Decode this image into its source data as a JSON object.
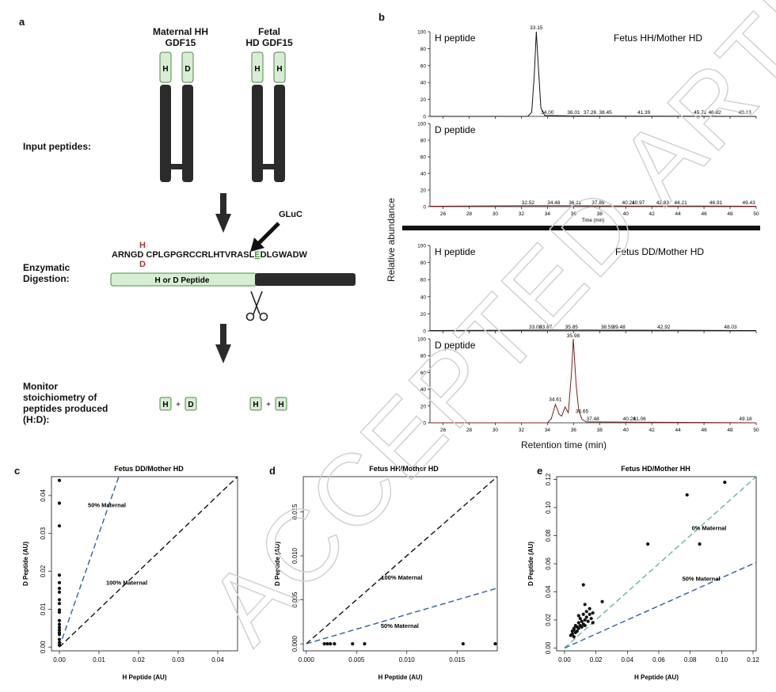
{
  "panel_a": {
    "letter": "a",
    "maternal_title_1": "Maternal HH",
    "maternal_title_2": "GDF15",
    "fetal_title_1": "Fetal",
    "fetal_title_2": "HD GDF15",
    "maternal_tags": [
      "H",
      "D"
    ],
    "fetal_tags": [
      "H",
      "H"
    ],
    "input_label": "Input peptides:",
    "gluc_label": "GLuC",
    "sequence_prefix": "ARNGD",
    "sequence_body": "CPLGPGRCCRLHTVRASL",
    "sequence_cut": "E",
    "sequence_suffix": "DLGWADW",
    "variant_top": "H",
    "variant_bottom": "D",
    "bar_label": "H or D Peptide",
    "digestion_label_1": "Enzymatic",
    "digestion_label_2": "Digestion:",
    "monitor_label_1": "Monitor",
    "monitor_label_2": "stoichiometry of",
    "monitor_label_3": "peptides produced",
    "monitor_label_4": "(H:D):",
    "pair1": [
      "H",
      "+",
      "D"
    ],
    "pair2": [
      "H",
      "+",
      "H"
    ]
  },
  "panel_b": {
    "letter": "b",
    "ylabel": "Relative abundance",
    "xlabel": "Retention time (min)",
    "small_xlabel": "Time (min)",
    "x_ticks": [
      "26",
      "28",
      "30",
      "32",
      "34",
      "36",
      "38",
      "40",
      "42",
      "44",
      "46",
      "48",
      "50"
    ],
    "y_ticks": [
      "0",
      "20",
      "40",
      "60",
      "80",
      "100"
    ],
    "top_condition": "Fetus HH/Mother HD",
    "bottom_condition": "Fetus DD/Mother HD",
    "trace_titles": [
      "H peptide",
      "D peptide",
      "H peptide",
      "D peptide"
    ],
    "peak_labels": [
      [
        "33.15",
        "34.00",
        "36.01",
        "37.26",
        "38.45",
        "41.39",
        "45.71",
        "46.82",
        "49.13"
      ],
      [
        "32.52",
        "34.48",
        "36.11",
        "37.89",
        "40.21",
        "40.97",
        "42.83",
        "44.21",
        "46.91",
        "49.43"
      ],
      [
        "33.08",
        "33.87",
        "35.85",
        "38.59",
        "39.48",
        "42.92",
        "48.03"
      ],
      [
        "35.98",
        "34.61",
        "36.65",
        "37.48",
        "40.28",
        "41.06",
        "49.18"
      ]
    ]
  },
  "panel_c": {
    "letter": "c",
    "title": "Fetus DD/Mother HD",
    "xlabel": "H Peptide (AU)",
    "ylabel": "D Peptide (AU)",
    "x_ticks": [
      "0.00",
      "0.01",
      "0.02",
      "0.03",
      "0.04"
    ],
    "y_ticks": [
      "0.00",
      "0.01",
      "0.02",
      "0.03",
      "0.04"
    ],
    "line1_label": "50% Maternal",
    "line2_label": "100% Maternal"
  },
  "panel_d": {
    "letter": "d",
    "title": "Fetus HH/Mother HD",
    "xlabel": "H Peptide (AU)",
    "ylabel": "D Peptide (AU)",
    "x_ticks": [
      "0.000",
      "0.005",
      "0.010",
      "0.015"
    ],
    "y_ticks": [
      "0.000",
      "0.005",
      "0.010",
      "0.015"
    ],
    "line1_label": "100% Maternal",
    "line2_label": "50% Maternal"
  },
  "panel_e": {
    "letter": "e",
    "title": "Fetus HD/Mother HH",
    "xlabel": "H Peptide (AU)",
    "ylabel": "D Peptide (AU)",
    "x_ticks": [
      "0.00",
      "0.02",
      "0.04",
      "0.06",
      "0.08",
      "0.10",
      "0.12"
    ],
    "y_ticks": [
      "0.00",
      "0.02",
      "0.04",
      "0.06",
      "0.08",
      "0.10",
      "0.12"
    ],
    "line1_label": "0% Maternal",
    "line2_label": "50% Maternal"
  },
  "watermark": "ACCEPTED ARTICLE PREVIEW",
  "colors": {
    "light_green": "#d8eed4",
    "green_border": "#4f8a4a",
    "dark_gray": "#2b2b2b",
    "red": "#b0343c",
    "blue_dash": "#2f5f9e",
    "teal_dash": "#5fb7a0",
    "trace_red": "#7a1f1f"
  },
  "chart_data": [
    {
      "type": "line",
      "panel": "b",
      "title": "H peptide",
      "condition": "Fetus HH/Mother HD",
      "xlabel": "Time (min)",
      "ylabel": "Relative abundance",
      "xlim": [
        25,
        50
      ],
      "ylim": [
        0,
        100
      ],
      "x": [
        25,
        32.5,
        32.8,
        33.0,
        33.15,
        33.3,
        33.5,
        33.8,
        34.0,
        36.0,
        50
      ],
      "y": [
        0,
        0,
        5,
        50,
        100,
        60,
        10,
        1,
        1,
        0.5,
        0
      ]
    },
    {
      "type": "line",
      "panel": "b",
      "title": "D peptide",
      "condition": "Fetus HH/Mother HD",
      "xlabel": "Time (min)",
      "ylabel": "Relative abundance",
      "xlim": [
        25,
        50
      ],
      "ylim": [
        0,
        100
      ],
      "x": [
        25,
        32.52,
        36.11,
        40.21,
        46.91,
        50
      ],
      "y": [
        0.5,
        1,
        1,
        0.8,
        0.8,
        0.5
      ]
    },
    {
      "type": "line",
      "panel": "b",
      "title": "H peptide",
      "condition": "Fetus DD/Mother HD",
      "xlabel": "Retention time (min)",
      "ylabel": "Relative abundance",
      "xlim": [
        25,
        50
      ],
      "ylim": [
        0,
        100
      ],
      "x": [
        25,
        33.08,
        35.85,
        42.92,
        50
      ],
      "y": [
        0.5,
        1,
        1,
        0.8,
        0.5
      ]
    },
    {
      "type": "line",
      "panel": "b",
      "title": "D peptide",
      "condition": "Fetus DD/Mother HD",
      "xlabel": "Retention time (min)",
      "ylabel": "Relative abundance",
      "xlim": [
        25,
        50
      ],
      "ylim": [
        0,
        100
      ],
      "x": [
        25,
        34.0,
        34.3,
        34.61,
        34.9,
        35.1,
        35.35,
        35.6,
        35.85,
        35.98,
        36.2,
        36.4,
        36.65,
        37.0,
        37.48,
        50
      ],
      "y": [
        0,
        0,
        5,
        22,
        10,
        8,
        19,
        12,
        60,
        100,
        45,
        15,
        4,
        1,
        1,
        0
      ]
    },
    {
      "type": "scatter",
      "panel": "c",
      "title": "Fetus DD/Mother HD",
      "xlabel": "H Peptide (AU)",
      "ylabel": "D Peptide (AU)",
      "xlim": [
        -0.002,
        0.045
      ],
      "ylim": [
        -0.001,
        0.045
      ],
      "points": [
        [
          0.0,
          0.044
        ],
        [
          0.0,
          0.038
        ],
        [
          0.0,
          0.032
        ],
        [
          0.0,
          0.019
        ],
        [
          0.0,
          0.017
        ],
        [
          0.0,
          0.0155
        ],
        [
          0.0,
          0.0145
        ],
        [
          0.0,
          0.0125
        ],
        [
          0.0,
          0.0115
        ],
        [
          0.0,
          0.0098
        ],
        [
          0.0,
          0.0092
        ],
        [
          0.0,
          0.007
        ],
        [
          0.0,
          0.006
        ],
        [
          0.0,
          0.0052
        ],
        [
          0.0,
          0.0045
        ],
        [
          0.0,
          0.0038
        ],
        [
          0.0,
          0.0033
        ],
        [
          0.0,
          0.002
        ],
        [
          0.0,
          0.0012
        ],
        [
          0.0,
          0.0005
        ]
      ],
      "lines": [
        {
          "name": "50% Maternal",
          "slope": 3
        },
        {
          "name": "100% Maternal",
          "slope": 1
        }
      ]
    },
    {
      "type": "scatter",
      "panel": "d",
      "title": "Fetus HH/Mother HD",
      "xlabel": "H Peptide (AU)",
      "ylabel": "D Peptide (AU)",
      "xlim": [
        -0.0003,
        0.019
      ],
      "ylim": [
        -0.0008,
        0.019
      ],
      "points": [
        [
          0.0018,
          0.0
        ],
        [
          0.0021,
          0.0
        ],
        [
          0.0024,
          0.0
        ],
        [
          0.0028,
          0.0
        ],
        [
          0.0046,
          0.0
        ],
        [
          0.0058,
          0.0
        ],
        [
          0.0156,
          0.0
        ],
        [
          0.0188,
          0.0
        ]
      ],
      "lines": [
        {
          "name": "100% Maternal",
          "slope": 1
        },
        {
          "name": "50% Maternal",
          "slope": 0.333
        }
      ]
    },
    {
      "type": "scatter",
      "panel": "e",
      "title": "Fetus HD/Mother HH",
      "xlabel": "H Peptide (AU)",
      "ylabel": "D Peptide (AU)",
      "xlim": [
        -0.005,
        0.122
      ],
      "ylim": [
        -0.002,
        0.122
      ],
      "points": [
        [
          0.102,
          0.118
        ],
        [
          0.078,
          0.109
        ],
        [
          0.086,
          0.074
        ],
        [
          0.053,
          0.074
        ],
        [
          0.012,
          0.045
        ],
        [
          0.024,
          0.033
        ],
        [
          0.013,
          0.031
        ],
        [
          0.016,
          0.028
        ],
        [
          0.014,
          0.026
        ],
        [
          0.018,
          0.025
        ],
        [
          0.016,
          0.024
        ],
        [
          0.012,
          0.024
        ],
        [
          0.009,
          0.023
        ],
        [
          0.014,
          0.022
        ],
        [
          0.01,
          0.021
        ],
        [
          0.017,
          0.021
        ],
        [
          0.013,
          0.02
        ],
        [
          0.011,
          0.019
        ],
        [
          0.015,
          0.019
        ],
        [
          0.018,
          0.018
        ],
        [
          0.009,
          0.018
        ],
        [
          0.012,
          0.017
        ],
        [
          0.007,
          0.016
        ],
        [
          0.01,
          0.016
        ],
        [
          0.013,
          0.016
        ],
        [
          0.008,
          0.015
        ],
        [
          0.011,
          0.015
        ],
        [
          0.006,
          0.014
        ],
        [
          0.009,
          0.014
        ],
        [
          0.006,
          0.013
        ],
        [
          0.008,
          0.012
        ],
        [
          0.005,
          0.012
        ],
        [
          0.007,
          0.011
        ],
        [
          0.005,
          0.01
        ],
        [
          0.004,
          0.009
        ],
        [
          0.006,
          0.008
        ]
      ],
      "lines": [
        {
          "name": "0% Maternal",
          "slope": 1
        },
        {
          "name": "50% Maternal",
          "slope": 0.5
        }
      ]
    }
  ]
}
